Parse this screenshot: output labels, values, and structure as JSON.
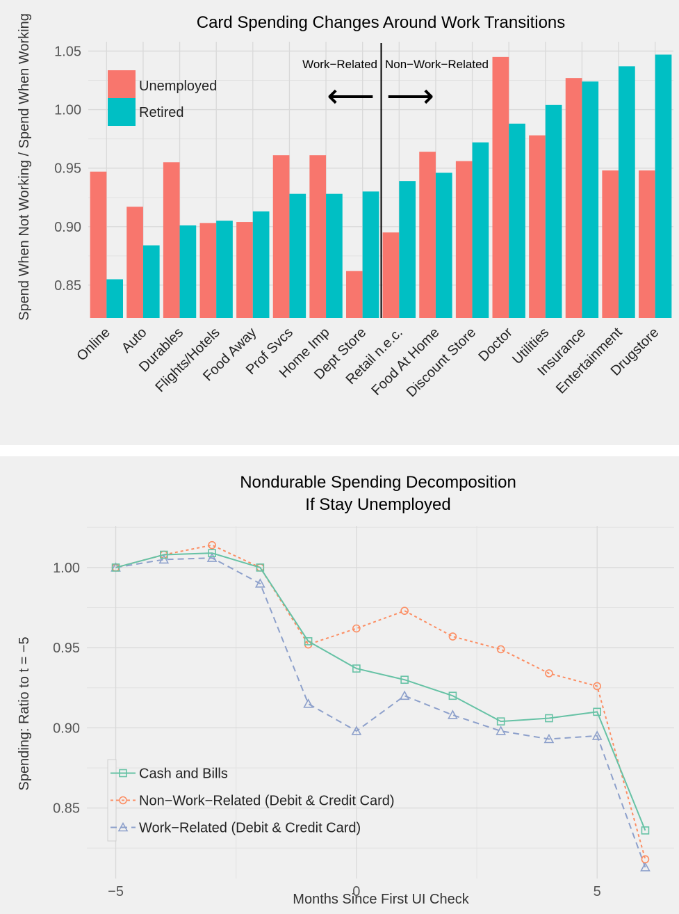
{
  "chart_data": [
    {
      "type": "bar",
      "title": "Card Spending Changes Around Work Transitions",
      "ylabel": "Spend When Not Working / Spend When Working",
      "xlabel": "",
      "ylim": [
        0.822,
        1.058
      ],
      "yticks": [
        0.85,
        0.9,
        0.95,
        1.0,
        1.05
      ],
      "ytick_labels": [
        "0.85",
        "0.90",
        "0.95",
        "1.00",
        "1.05"
      ],
      "categories": [
        "Online",
        "Auto",
        "Durables",
        "Flights/Hotels",
        "Food Away",
        "Prof Svcs",
        "Home Imp",
        "Dept Store",
        "Retail n.e.c.",
        "Food At Home",
        "Discount Store",
        "Doctor",
        "Utilities",
        "Insurance",
        "Entertainment",
        "Drugstore"
      ],
      "series": [
        {
          "name": "Unemployed",
          "color": "#f8766d",
          "values": [
            0.947,
            0.917,
            0.955,
            0.903,
            0.904,
            0.961,
            0.961,
            0.862,
            0.895,
            0.964,
            0.956,
            1.045,
            0.978,
            1.027,
            0.948,
            0.948
          ]
        },
        {
          "name": "Retired",
          "color": "#00bfc4",
          "values": [
            0.855,
            0.884,
            0.901,
            0.905,
            0.913,
            0.928,
            0.928,
            0.93,
            0.939,
            0.946,
            0.972,
            0.988,
            1.004,
            1.024,
            1.037,
            1.047
          ]
        }
      ],
      "legend_position": "top-left",
      "grid": true,
      "annotation": {
        "left_label": "Work−Related",
        "right_label": "Non−Work−Related",
        "left_arrow": "⟵",
        "right_arrow": "⟶",
        "divider_after_category": "Dept Store"
      }
    },
    {
      "type": "line",
      "title": "Nondurable Spending Decomposition",
      "subtitle": "If Stay Unemployed",
      "xlabel": "Months Since First UI Check",
      "ylabel": "Spending: Ratio to t = −5",
      "xlim": [
        -5.6,
        6.6
      ],
      "ylim": [
        0.806,
        1.026
      ],
      "xticks": [
        -5,
        0,
        5
      ],
      "xtick_labels": [
        "−5",
        "0",
        "5"
      ],
      "yticks": [
        0.85,
        0.9,
        0.95,
        1.0
      ],
      "ytick_labels": [
        "0.85",
        "0.90",
        "0.95",
        "1.00"
      ],
      "x": [
        -5,
        -4,
        -3,
        -2,
        -1,
        0,
        1,
        2,
        3,
        4,
        5,
        6
      ],
      "series": [
        {
          "name": "Cash and Bills",
          "color": "#66c2a5",
          "marker": "square",
          "dash": "solid",
          "values": [
            1.0,
            1.008,
            1.009,
            1.0,
            0.954,
            0.937,
            0.93,
            0.92,
            0.904,
            0.906,
            0.91,
            0.836
          ]
        },
        {
          "name": "Non−Work−Related (Debit & Credit Card)",
          "color": "#fc8d62",
          "marker": "circle",
          "dash": "dotted",
          "values": [
            1.0,
            1.008,
            1.014,
            1.0,
            0.952,
            0.962,
            0.973,
            0.957,
            0.949,
            0.934,
            0.926,
            0.818
          ]
        },
        {
          "name": "Work−Related (Debit & Credit Card)",
          "color": "#8da0cb",
          "marker": "triangle",
          "dash": "dashed",
          "values": [
            1.0,
            1.005,
            1.006,
            0.99,
            0.915,
            0.898,
            0.92,
            0.908,
            0.898,
            0.893,
            0.895,
            0.813
          ]
        }
      ],
      "legend_position": "bottom-left",
      "grid": true
    }
  ]
}
